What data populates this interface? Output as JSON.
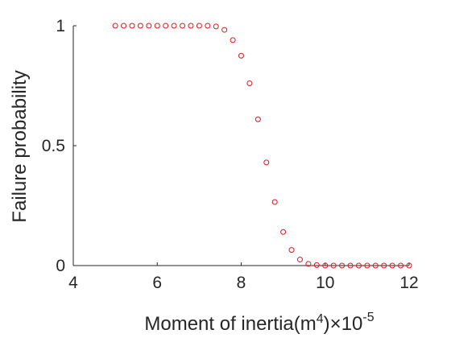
{
  "chart_data": {
    "type": "scatter",
    "title": "",
    "xlabel": {
      "text": "Moment of inertia(m",
      "sup": "4",
      "after": ")",
      "multiplier_base": "×10",
      "multiplier_exp": "-5"
    },
    "ylabel": "Failure probability",
    "xlim": [
      4,
      12
    ],
    "ylim": [
      0,
      1
    ],
    "xticks": [
      4,
      6,
      8,
      10,
      12
    ],
    "xtick_labels": [
      "4",
      "6",
      "8",
      "10",
      "12"
    ],
    "yticks": [
      0,
      0.5,
      1
    ],
    "ytick_labels": [
      "0",
      "0.5",
      "1"
    ],
    "grid": false,
    "marker": "open-circle",
    "marker_color": "#e0161b",
    "series": [
      {
        "x": [
          5.0,
          5.2,
          5.4,
          5.6,
          5.8,
          6.0,
          6.2,
          6.4,
          6.6,
          6.8,
          7.0,
          7.2,
          7.4,
          7.6,
          7.8,
          8.0,
          8.2,
          8.4,
          8.6,
          8.8,
          9.0,
          9.2,
          9.4,
          9.6,
          9.8,
          10.0,
          10.2,
          10.4,
          10.6,
          10.8,
          11.0,
          11.2,
          11.4,
          11.6,
          11.8,
          12.0
        ],
        "y": [
          1.0,
          1.0,
          1.0,
          1.0,
          1.0,
          1.0,
          1.0,
          1.0,
          1.0,
          1.0,
          1.0,
          1.0,
          0.997,
          0.983,
          0.94,
          0.875,
          0.76,
          0.61,
          0.43,
          0.265,
          0.14,
          0.065,
          0.025,
          0.007,
          0.002,
          0.0,
          0.0,
          0.0,
          0.0,
          0.0,
          0.0,
          0.0,
          0.0,
          0.0,
          0.0,
          0.0
        ]
      }
    ]
  }
}
